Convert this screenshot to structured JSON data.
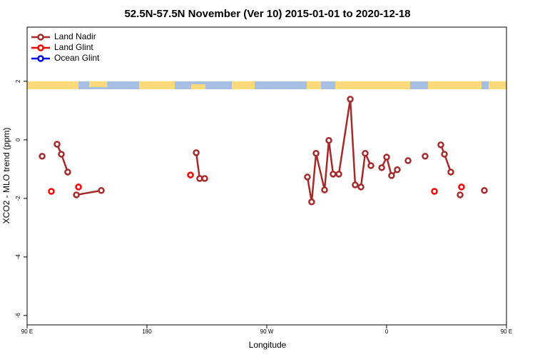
{
  "chart_data": {
    "type": "line",
    "title": "52.5N-57.5N November (Ver 10)   2015-01-01 to 2020-12-18",
    "x_label": "Longitude",
    "y_label": "XCO2 - MLO trend (ppm)",
    "xlim": [
      90,
      450
    ],
    "ylim": [
      -6.32,
      3.85
    ],
    "xticks": [
      {
        "value": 90,
        "label": "90 E"
      },
      180,
      {
        "value": 270,
        "label": "90 W"
      },
      {
        "value": 360,
        "label": "0"
      },
      {
        "value": 450,
        "label": "90 E"
      }
    ],
    "yticks": [
      -6,
      -4,
      -2,
      0,
      2
    ],
    "legend": "top-left",
    "series": [
      {
        "name": "Land Nadir",
        "color": "#a52a2a",
        "x": [
          101.3,
          null,
          112.5,
          115.7,
          120.5,
          null,
          127.0,
          145.7,
          null,
          217.0,
          219.6,
          223.4,
          null,
          300.5,
          303.7,
          307.0,
          313.4,
          316.6,
          319.8,
          324.1,
          332.7,
          336.4,
          340.7,
          343.9,
          348.2,
          null,
          356.3,
          360.0,
          363.7,
          368.0,
          null,
          376.1,
          null,
          388.9,
          null,
          400.7,
          403.4,
          408.2,
          null,
          415.2,
          null,
          433.4
        ],
        "values": [
          -0.56,
          null,
          -0.15,
          -0.49,
          -1.1,
          null,
          -1.88,
          -1.73,
          null,
          -0.44,
          -1.32,
          -1.32,
          null,
          -1.27,
          -2.12,
          -0.46,
          -1.71,
          -0.02,
          -1.17,
          -1.17,
          1.39,
          -1.54,
          -1.61,
          -0.46,
          -0.88,
          null,
          -0.95,
          -0.59,
          -1.22,
          -1.02,
          null,
          -0.71,
          null,
          -0.56,
          null,
          -0.17,
          -0.49,
          -1.1,
          null,
          -1.88,
          null,
          -1.73
        ]
      },
      {
        "name": "Land Glint",
        "color": "#ff0000",
        "x": [
          108.2,
          null,
          128.6,
          null,
          212.7,
          null,
          395.9,
          null,
          416.2
        ],
        "values": [
          -1.76,
          null,
          -1.61,
          null,
          -1.2,
          null,
          -1.76,
          null,
          -1.61
        ]
      },
      {
        "name": "Ocean Glint",
        "color": "#0000ff",
        "x": [],
        "values": []
      }
    ]
  }
}
